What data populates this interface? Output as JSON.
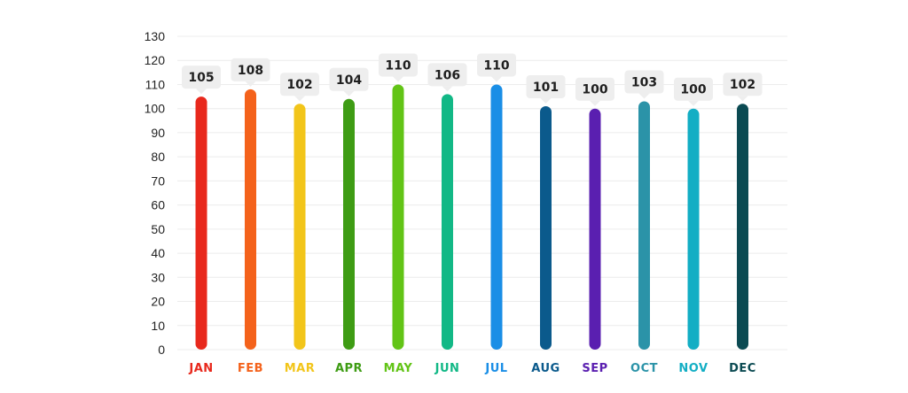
{
  "chart_data": {
    "type": "bar",
    "title": "",
    "xlabel": "",
    "ylabel": "",
    "categories": [
      "JAN",
      "FEB",
      "MAR",
      "APR",
      "MAY",
      "JUN",
      "JUL",
      "AUG",
      "SEP",
      "OCT",
      "NOV",
      "DEC"
    ],
    "values": [
      105,
      108,
      102,
      104,
      110,
      106,
      110,
      101,
      100,
      103,
      100,
      102
    ],
    "colors": [
      "#e8281c",
      "#f4621b",
      "#f2c51a",
      "#3e9c14",
      "#62c416",
      "#12b886",
      "#1a8ee6",
      "#0b5a8c",
      "#5a1fb0",
      "#2b93a8",
      "#13aec4",
      "#0b4a52"
    ],
    "ylim": [
      0,
      130
    ],
    "yticks": [
      0,
      10,
      20,
      30,
      40,
      50,
      60,
      70,
      80,
      90,
      100,
      110,
      120,
      130
    ],
    "grid": true,
    "data_labels": true,
    "legend": "none"
  }
}
